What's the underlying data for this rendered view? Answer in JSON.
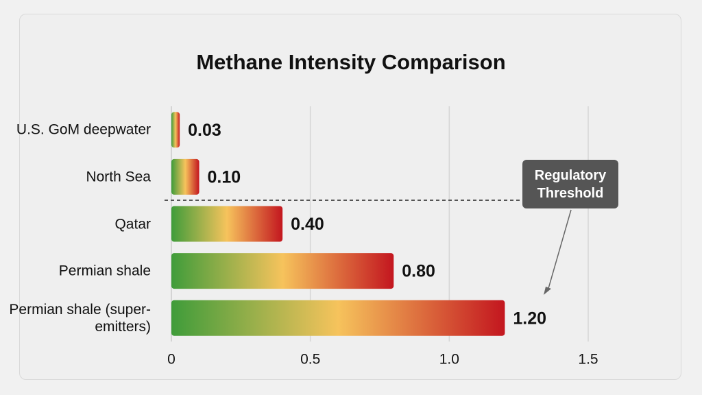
{
  "chart_data": {
    "type": "hbar",
    "title": "Methane Intensity Comparison",
    "categories": [
      "U.S. GoM deepwater",
      "North Sea",
      "Qatar",
      "Permian shale",
      "Permian shale (super-emitters)"
    ],
    "values": [
      0.03,
      0.1,
      0.4,
      0.8,
      1.2
    ],
    "value_labels": [
      "0.03",
      "0.10",
      "0.40",
      "0.80",
      "1.20"
    ],
    "gradient": [
      "#3f9c3a",
      "#f6c35c",
      "#c3161f"
    ],
    "xlim": [
      0,
      1.5
    ],
    "xticks": [
      0,
      0.5,
      {
        "value": 1,
        "label": "1.0"
      },
      1.5
    ],
    "grid": true,
    "annotation": "Regulatory Threshold"
  }
}
